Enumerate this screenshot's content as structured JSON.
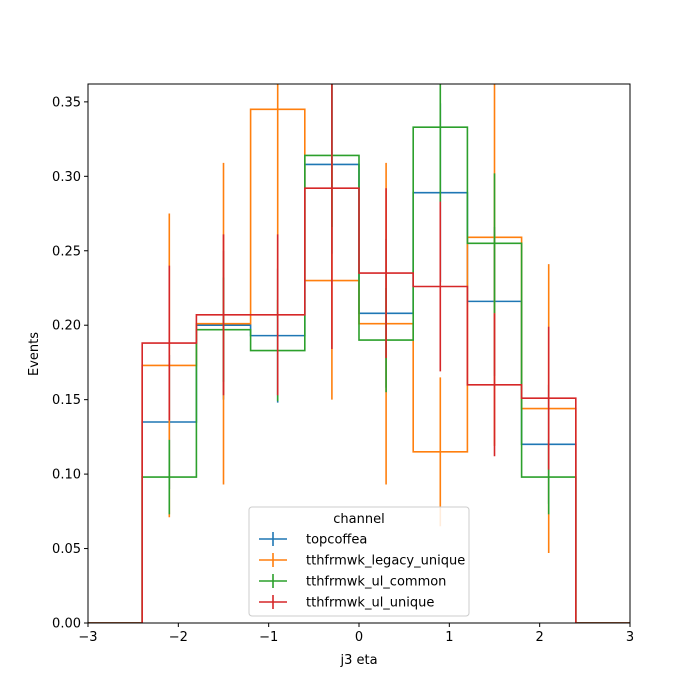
{
  "chart_data": {
    "type": "histogram-step",
    "title": "",
    "xlabel": "j3 eta",
    "ylabel": "Events",
    "xlim": [
      -3,
      3
    ],
    "ylim": [
      0,
      0.362
    ],
    "xticks": [
      -3,
      -2,
      -1,
      0,
      1,
      2,
      3
    ],
    "xtick_labels": [
      "−3",
      "−2",
      "−1",
      "0",
      "1",
      "2",
      "3"
    ],
    "yticks": [
      0,
      0.05,
      0.1,
      0.15,
      0.2,
      0.25,
      0.3,
      0.35
    ],
    "ytick_labels": [
      "0.00",
      "0.05",
      "0.10",
      "0.15",
      "0.20",
      "0.25",
      "0.30",
      "0.35"
    ],
    "grid": false,
    "bin_edges": [
      -3,
      -2.4,
      -1.8,
      -1.2,
      -0.6,
      0,
      0.6,
      1.2,
      1.8,
      2.4,
      3
    ],
    "legend": {
      "title": "channel",
      "placement": "lower-center"
    },
    "series": [
      {
        "name": "topcoffea",
        "color": "#1f77b4",
        "values": [
          0,
          0.135,
          0.2,
          0.193,
          0.308,
          0.208,
          0.289,
          0.216,
          0.12,
          0
        ],
        "errors": [
          0,
          0.045,
          0.05,
          0.045,
          0.06,
          0.05,
          0.06,
          0.05,
          0.04,
          0
        ]
      },
      {
        "name": "tthfrmwk_legacy_unique",
        "color": "#ff7f0e",
        "values": [
          0,
          0.173,
          0.201,
          0.345,
          0.23,
          0.201,
          0.115,
          0.259,
          0.144,
          0
        ],
        "errors": [
          0,
          0.102,
          0.108,
          0.14,
          0.08,
          0.108,
          0.05,
          0.14,
          0.097,
          0
        ]
      },
      {
        "name": "tthfrmwk_ul_common",
        "color": "#2ca02c",
        "values": [
          0,
          0.098,
          0.197,
          0.183,
          0.314,
          0.19,
          0.333,
          0.255,
          0.098,
          0
        ],
        "errors": [
          0,
          0.025,
          0.035,
          0.034,
          0.048,
          0.035,
          0.05,
          0.047,
          0.025,
          0
        ]
      },
      {
        "name": "tthfrmwk_ul_unique",
        "color": "#d62728",
        "values": [
          0,
          0.188,
          0.207,
          0.207,
          0.292,
          0.235,
          0.226,
          0.16,
          0.151,
          0
        ],
        "errors": [
          0,
          0.052,
          0.054,
          0.054,
          0.108,
          0.057,
          0.057,
          0.048,
          0.048,
          0
        ]
      }
    ]
  }
}
